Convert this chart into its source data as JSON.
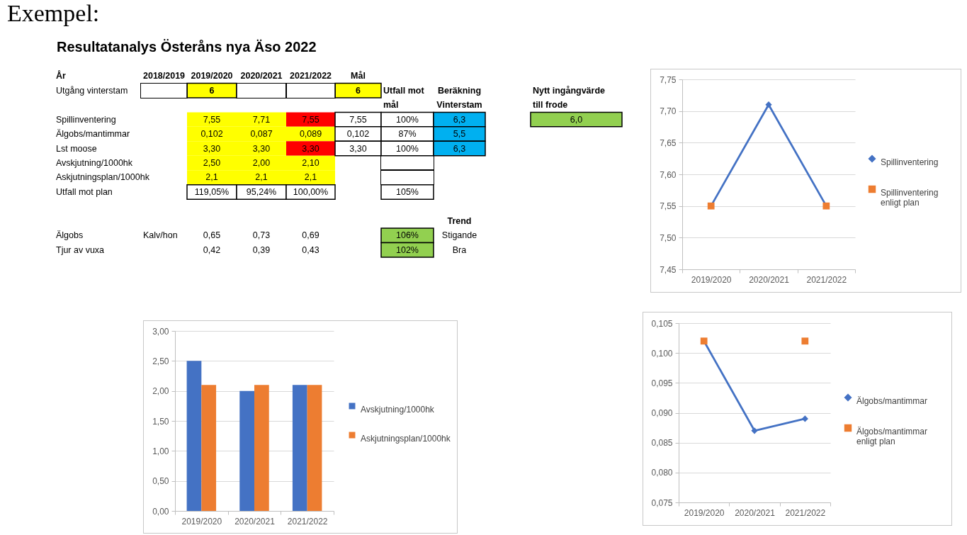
{
  "chart_data": [
    {
      "type": "other",
      "title": "Resultatanalys Österåns nya Äso 2022",
      "annotations": [
        "Exempel:"
      ],
      "cell_labels": [
        [
          "År",
          "2018/2019",
          "2019/2020",
          "2020/2021",
          "2021/2022",
          "Mål",
          null,
          null,
          null,
          null
        ],
        [
          "Utgång vinterstam",
          null,
          "6",
          null,
          null,
          "6",
          "Utfall mot",
          "Beräkning",
          null,
          "Nytt ingångvärde"
        ],
        [
          null,
          null,
          null,
          null,
          null,
          null,
          "mål",
          "Vinterstam",
          null,
          "till frode"
        ],
        [
          "Spillinventering",
          null,
          "7,55",
          "7,71",
          "7,55",
          "7,55",
          "100%",
          "6,3",
          null,
          "6,0"
        ],
        [
          "Älgobs/mantimmar",
          null,
          "0,102",
          "0,087",
          "0,089",
          "0,102",
          "87%",
          "5,5",
          null,
          null
        ],
        [
          "Lst moose",
          null,
          "3,30",
          "3,30",
          "3,30",
          "3,30",
          "100%",
          "6,3",
          null,
          null
        ],
        [
          "Avskjutning/1000hk",
          null,
          "2,50",
          "2,00",
          "2,10",
          null,
          null,
          null,
          null,
          null
        ],
        [
          "Askjutningsplan/1000hk",
          null,
          "2,1",
          "2,1",
          "2,1",
          null,
          null,
          null,
          null,
          null
        ],
        [
          "Utfall mot plan",
          null,
          "119,05%",
          "95,24%",
          "100,00%",
          null,
          "105%",
          null,
          null,
          null
        ],
        [
          null,
          null,
          null,
          null,
          null,
          null,
          null,
          null,
          null,
          null
        ],
        [
          null,
          null,
          null,
          null,
          null,
          null,
          null,
          "Trend",
          null,
          null
        ],
        [
          "Älgobs",
          "Kalv/hon",
          "0,65",
          "0,73",
          "0,69",
          null,
          "106%",
          "Stigande",
          null,
          null
        ],
        [
          "Tjur av vuxa",
          null,
          "0,42",
          "0,39",
          "0,43",
          null,
          "102%",
          "Bra",
          null,
          null
        ]
      ],
      "colors": [
        [
          null,
          null,
          null,
          null,
          null,
          null,
          null,
          null,
          null,
          null
        ],
        [
          null,
          null,
          "#ffff00",
          null,
          null,
          "#ffff00",
          null,
          null,
          null,
          null
        ],
        [
          null,
          null,
          null,
          null,
          null,
          null,
          null,
          null,
          null,
          null
        ],
        [
          null,
          null,
          "#ffff00",
          "#ffff00",
          "#ff0000",
          "#ffffff",
          "#ffffff",
          "#00b0f0",
          null,
          "#92d050"
        ],
        [
          null,
          null,
          "#ffff00",
          "#ffff00",
          "#ffff00",
          "#ffffff",
          "#ffffff",
          "#00b0f0",
          null,
          null
        ],
        [
          null,
          null,
          "#ffff00",
          "#ffff00",
          "#ff0000",
          "#ffffff",
          "#ffffff",
          "#00b0f0",
          null,
          null
        ],
        [
          null,
          null,
          "#ffff00",
          "#ffff00",
          "#ffff00",
          null,
          null,
          null,
          null,
          null
        ],
        [
          null,
          null,
          "#ffff00",
          "#ffff00",
          "#ffff00",
          null,
          null,
          null,
          null,
          null
        ],
        [
          null,
          null,
          "#ffffff",
          "#ffffff",
          "#ffffff",
          null,
          "#ffffff",
          null,
          null,
          null
        ],
        [
          null,
          null,
          null,
          null,
          null,
          null,
          null,
          null,
          null,
          null
        ],
        [
          null,
          null,
          null,
          null,
          null,
          null,
          null,
          null,
          null,
          null
        ],
        [
          null,
          null,
          null,
          null,
          null,
          null,
          "#92d050",
          null,
          null,
          null
        ],
        [
          null,
          null,
          null,
          null,
          null,
          null,
          "#92d050",
          null,
          null,
          null
        ]
      ]
    },
    {
      "type": "line",
      "categories": [
        "2019/2020",
        "2020/2021",
        "2021/2022"
      ],
      "series": [
        {
          "name": "Spillinventering",
          "color": "#4472c4",
          "values": [
            7.55,
            7.71,
            7.55
          ],
          "marker": "diamond"
        },
        {
          "name": "Spillinventering enligt plan",
          "type": "scatter",
          "color": "#ed7d31",
          "values": [
            7.55,
            null,
            7.55
          ],
          "marker": "square"
        }
      ],
      "ylim": [
        7.45,
        7.75
      ],
      "yticks": [
        {
          "value": 7.45,
          "label": "7,45"
        },
        {
          "value": 7.5,
          "label": "7,50"
        },
        {
          "value": 7.55,
          "label": "7,55"
        },
        {
          "value": 7.6,
          "label": "7,60"
        },
        {
          "value": 7.65,
          "label": "7,65"
        },
        {
          "value": 7.7,
          "label": "7,70"
        },
        {
          "value": 7.75,
          "label": "7,75"
        }
      ],
      "grid": "y",
      "legend": "right"
    },
    {
      "type": "bar",
      "categories": [
        "2019/2020",
        "2020/2021",
        "2021/2022"
      ],
      "series": [
        {
          "name": "Avskjutning/1000hk",
          "color": "#4472c4",
          "values": [
            2.5,
            2.0,
            2.1
          ]
        },
        {
          "name": "Askjutningsplan/1000hk",
          "color": "#ed7d31",
          "values": [
            2.1,
            2.1,
            2.1
          ]
        }
      ],
      "ylim": [
        0,
        3
      ],
      "yticks": [
        {
          "value": 0,
          "label": "0,00"
        },
        {
          "value": 0.5,
          "label": "0,50"
        },
        {
          "value": 1,
          "label": "1,00"
        },
        {
          "value": 1.5,
          "label": "1,50"
        },
        {
          "value": 2,
          "label": "2,00"
        },
        {
          "value": 2.5,
          "label": "2,50"
        },
        {
          "value": 3,
          "label": "3,00"
        }
      ],
      "grid": "y",
      "legend": "right"
    },
    {
      "type": "line",
      "categories": [
        "2019/2020",
        "2020/2021",
        "2021/2022"
      ],
      "series": [
        {
          "name": "Älgobs/mantimmar",
          "color": "#4472c4",
          "values": [
            0.102,
            0.087,
            0.089
          ],
          "marker": "diamond"
        },
        {
          "name": "Älgobs/mantimmar enligt plan",
          "type": "scatter",
          "color": "#ed7d31",
          "values": [
            0.102,
            null,
            0.102
          ],
          "marker": "square"
        }
      ],
      "ylim": [
        0.075,
        0.105
      ],
      "yticks": [
        {
          "value": 0.075,
          "label": "0,075"
        },
        {
          "value": 0.08,
          "label": "0,080"
        },
        {
          "value": 0.085,
          "label": "0,085"
        },
        {
          "value": 0.09,
          "label": "0,090"
        },
        {
          "value": 0.095,
          "label": "0,095"
        },
        {
          "value": 0.1,
          "label": "0,100"
        },
        {
          "value": 0.105,
          "label": "0,105"
        }
      ],
      "grid": "y",
      "legend": "right"
    }
  ]
}
